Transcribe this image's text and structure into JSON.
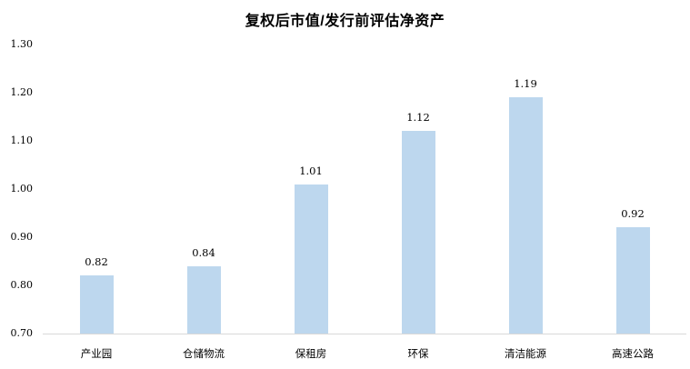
{
  "chart_data": {
    "type": "bar",
    "title": "复权后市值/发行前评估净资产",
    "categories": [
      "产业园",
      "仓储物流",
      "保租房",
      "环保",
      "清洁能源",
      "高速公路"
    ],
    "values": [
      0.82,
      0.84,
      1.01,
      1.12,
      1.19,
      0.92
    ],
    "value_labels": [
      "0.82",
      "0.84",
      "1.01",
      "1.12",
      "1.19",
      "0.92"
    ],
    "xlabel": "",
    "ylabel": "",
    "ylim": [
      0.7,
      1.3
    ],
    "ytick_values": [
      0.7,
      0.8,
      0.9,
      1.0,
      1.1,
      1.2,
      1.3
    ],
    "ytick_labels": [
      "0.70",
      "0.80",
      "0.90",
      "1.00",
      "1.10",
      "1.20",
      "1.30"
    ],
    "grid": false,
    "legend": null,
    "colors": {
      "bar_fill": "#BDD7EE",
      "axis_line": "#D9D9D9",
      "text": "#000000",
      "background": "#FFFFFF"
    }
  }
}
